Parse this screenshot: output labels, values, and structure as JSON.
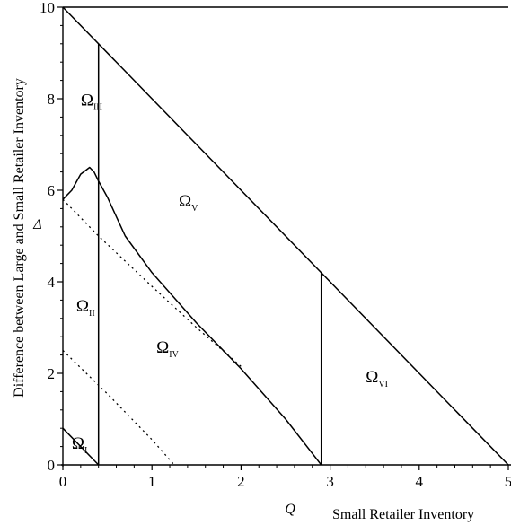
{
  "chart_data": {
    "type": "line",
    "title": "",
    "xlabel": "Small Retailer Inventory",
    "xsymbol": "Q",
    "ylabel": "Difference between Large and Small Retailer Inventory",
    "ysymbol": "Δ",
    "xlim": [
      0,
      5
    ],
    "ylim": [
      0,
      10
    ],
    "x_ticks": [
      0,
      1,
      2,
      3,
      4,
      5
    ],
    "x_tick_labels": [
      "0",
      "1",
      "2",
      "3",
      "4",
      "5"
    ],
    "y_ticks": [
      0,
      2,
      4,
      6,
      8,
      10
    ],
    "y_tick_labels": [
      "0",
      "2",
      "4",
      "6",
      "8",
      "10"
    ],
    "grid": false,
    "series": [
      {
        "style": "solid",
        "points": [
          [
            0,
            10
          ],
          [
            5,
            10
          ]
        ]
      },
      {
        "style": "solid",
        "points": [
          [
            0,
            10
          ],
          [
            5,
            0
          ]
        ]
      },
      {
        "style": "solid",
        "points": [
          [
            0.4,
            0
          ],
          [
            0.4,
            9.2
          ]
        ]
      },
      {
        "style": "solid",
        "points": [
          [
            2.9,
            0
          ],
          [
            2.9,
            4.2
          ]
        ]
      },
      {
        "style": "solid",
        "points": [
          [
            0,
            0.8
          ],
          [
            0.4,
            0
          ]
        ]
      },
      {
        "style": "solid",
        "points": [
          [
            0,
            5.8
          ],
          [
            0.1,
            6.0
          ],
          [
            0.2,
            6.35
          ],
          [
            0.3,
            6.5
          ],
          [
            0.35,
            6.4
          ],
          [
            0.4,
            6.2
          ],
          [
            0.5,
            5.85
          ],
          [
            0.7,
            5.0
          ],
          [
            1.0,
            4.2
          ],
          [
            1.5,
            3.1
          ],
          [
            2.0,
            2.1
          ],
          [
            2.5,
            1.0
          ],
          [
            2.9,
            0
          ]
        ]
      },
      {
        "style": "dotted",
        "points": [
          [
            0,
            5.8
          ],
          [
            0.4,
            5.0
          ],
          [
            1.0,
            3.9
          ],
          [
            1.5,
            3.0
          ],
          [
            2.0,
            2.15
          ]
        ]
      },
      {
        "style": "dotted",
        "points": [
          [
            0,
            2.5
          ],
          [
            0.5,
            1.55
          ],
          [
            1.0,
            0.55
          ],
          [
            1.25,
            0
          ]
        ]
      }
    ],
    "annotations": [
      {
        "text": "Ω",
        "sub": "I",
        "x": 0.1,
        "y": 0.35
      },
      {
        "text": "Ω",
        "sub": "II",
        "x": 0.15,
        "y": 3.35
      },
      {
        "text": "Ω",
        "sub": "III",
        "x": 0.2,
        "y": 7.85
      },
      {
        "text": "Ω",
        "sub": "IV",
        "x": 1.05,
        "y": 2.45
      },
      {
        "text": "Ω",
        "sub": "V",
        "x": 1.3,
        "y": 5.65
      },
      {
        "text": "Ω",
        "sub": "VI",
        "x": 3.4,
        "y": 1.8
      }
    ]
  }
}
